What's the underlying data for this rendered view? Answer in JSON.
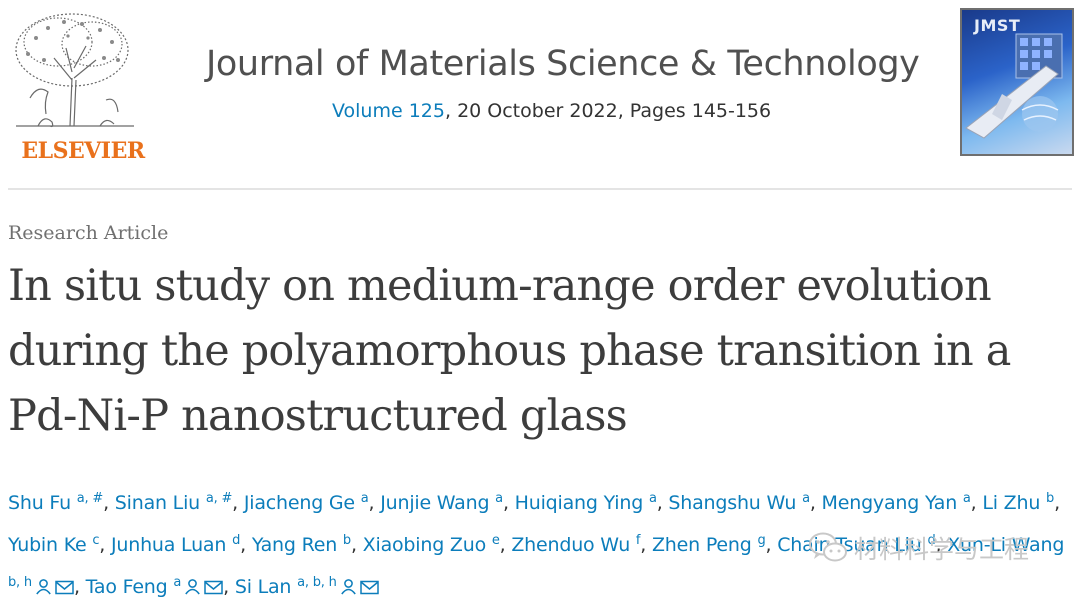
{
  "publisher": {
    "name": "ELSEVIER",
    "logo_icon": "elsevier-tree-icon"
  },
  "journal": {
    "title": "Journal of Materials Science & Technology",
    "volume_link": "Volume 125",
    "details": ", 20 October 2022, Pages 145-156",
    "cover_abbrev": "JMST"
  },
  "article": {
    "type": "Research Article",
    "title": "In situ study on medium-range order evolution during the polyamorphous phase transition in a Pd-Ni-P nanostructured glass"
  },
  "authors": [
    {
      "name": "Shu Fu",
      "affil": "a, #"
    },
    {
      "name": "Sinan Liu",
      "affil": "a, #"
    },
    {
      "name": "Jiacheng Ge",
      "affil": "a"
    },
    {
      "name": "Junjie Wang",
      "affil": "a"
    },
    {
      "name": "Huiqiang Ying",
      "affil": "a"
    },
    {
      "name": "Shangshu Wu",
      "affil": "a"
    },
    {
      "name": "Mengyang Yan",
      "affil": "a"
    },
    {
      "name": "Li Zhu",
      "affil": "b"
    },
    {
      "name": "Yubin Ke",
      "affil": "c"
    },
    {
      "name": "Junhua Luan",
      "affil": "d"
    },
    {
      "name": "Yang Ren",
      "affil": "b"
    },
    {
      "name": "Xiaobing Zuo",
      "affil": "e"
    },
    {
      "name": "Zhenduo Wu",
      "affil": "f"
    },
    {
      "name": "Zhen Peng",
      "affil": "g"
    },
    {
      "name": "Chain-Tsuan Liu",
      "affil": "d"
    },
    {
      "name": "Xun-Li Wang",
      "affil": "b, h",
      "icons": true
    },
    {
      "name": "Tao Feng",
      "affil": "a",
      "icons": true
    },
    {
      "name": "Si Lan",
      "affil": "a, b, h",
      "icons": true
    }
  ],
  "watermark": {
    "label": "材料科学与工程",
    "icon": "wechat-icon"
  },
  "colors": {
    "link": "#0c7dbb",
    "publisher_orange": "#e9711c",
    "title_gray": "#3d3d3d"
  }
}
